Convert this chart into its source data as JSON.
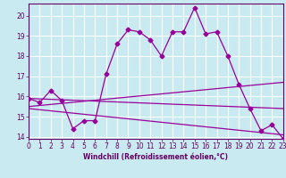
{
  "xlabel": "Windchill (Refroidissement éolien,°C)",
  "bg_color": "#c8eaf0",
  "grid_color": "#aad4dc",
  "line_color": "#990099",
  "x": [
    0,
    1,
    2,
    3,
    4,
    5,
    6,
    7,
    8,
    9,
    10,
    11,
    12,
    13,
    14,
    15,
    16,
    17,
    18,
    19,
    20,
    21,
    22,
    23
  ],
  "curve1": [
    15.9,
    15.7,
    16.3,
    15.8,
    14.4,
    14.8,
    14.8,
    17.1,
    18.6,
    19.3,
    19.2,
    18.8,
    18.0,
    19.2,
    19.2,
    20.4,
    19.1,
    19.2,
    18.0,
    16.6,
    15.4,
    14.3,
    14.6,
    13.9
  ],
  "straight_lines": [
    [
      15.9,
      15.4
    ],
    [
      15.5,
      16.7
    ],
    [
      15.4,
      14.1
    ]
  ],
  "ylim": [
    13.9,
    20.6
  ],
  "xlim": [
    0,
    23
  ],
  "yticks": [
    14,
    15,
    16,
    17,
    18,
    19,
    20
  ],
  "xticks": [
    0,
    1,
    2,
    3,
    4,
    5,
    6,
    7,
    8,
    9,
    10,
    11,
    12,
    13,
    14,
    15,
    16,
    17,
    18,
    19,
    20,
    21,
    22,
    23
  ],
  "tick_fontsize": 5.5,
  "xlabel_fontsize": 5.5
}
